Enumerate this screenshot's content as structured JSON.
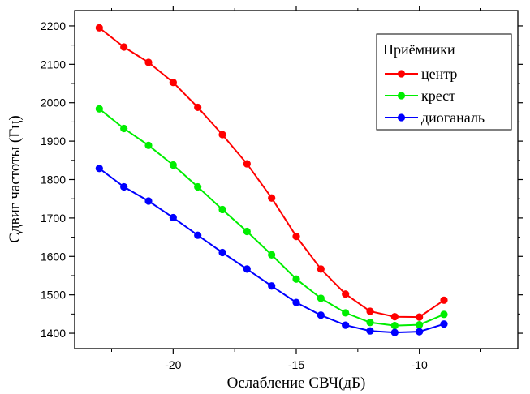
{
  "chart_data": {
    "type": "line",
    "xlabel": "Ослабление СВЧ(дБ)",
    "ylabel": "Сдвиг частоты (Гц)",
    "xlim": [
      -24,
      -6
    ],
    "ylim": [
      1360,
      2240
    ],
    "x_ticks": [
      -20,
      -15,
      -10
    ],
    "x_tick_labels": [
      "-20",
      "-15",
      "-10"
    ],
    "y_ticks": [
      1400,
      1500,
      1600,
      1700,
      1800,
      1900,
      2000,
      2100,
      2200
    ],
    "y_tick_labels": [
      "1400",
      "1500",
      "1600",
      "1700",
      "1800",
      "1900",
      "2000",
      "2100",
      "2200"
    ],
    "grid": false,
    "legend": {
      "title": "Приёмники",
      "position": "top-right"
    },
    "x": [
      -23,
      -22,
      -21,
      -20,
      -19,
      -18,
      -17,
      -16,
      -15,
      -14,
      -13,
      -12,
      -11,
      -10,
      -9
    ],
    "series": [
      {
        "name": "центр",
        "color": "#ff0000",
        "values": [
          2195,
          2145,
          2105,
          2053,
          1988,
          1917,
          1841,
          1752,
          1652,
          1567,
          1502,
          1457,
          1443,
          1442,
          1486
        ]
      },
      {
        "name": "крест",
        "color": "#00ee00",
        "values": [
          1984,
          1933,
          1889,
          1838,
          1781,
          1722,
          1665,
          1604,
          1541,
          1491,
          1453,
          1428,
          1420,
          1422,
          1449
        ]
      },
      {
        "name": "диоганаль",
        "color": "#0000ff",
        "values": [
          1829,
          1781,
          1744,
          1701,
          1655,
          1610,
          1567,
          1523,
          1480,
          1447,
          1421,
          1406,
          1402,
          1404,
          1424
        ]
      }
    ]
  }
}
